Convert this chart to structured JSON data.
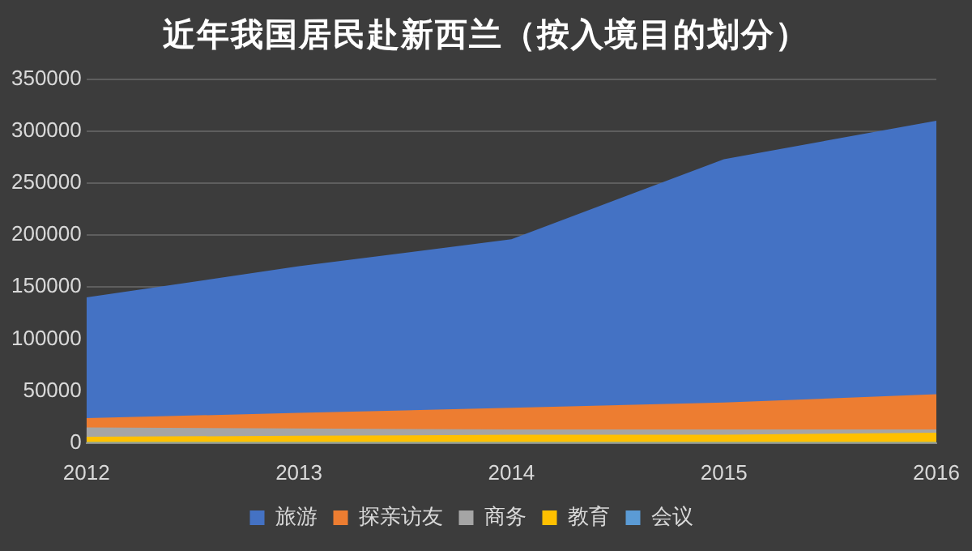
{
  "chart_data": {
    "type": "area",
    "title": "近年我国居民赴新西兰（按入境目的划分）",
    "categories": [
      "2012",
      "2013",
      "2014",
      "2015",
      "2016"
    ],
    "series": [
      {
        "name": "旅游",
        "color": "#4472c4",
        "values": [
          140000,
          170000,
          196000,
          273000,
          310000
        ]
      },
      {
        "name": "探亲访友",
        "color": "#ed7d31",
        "values": [
          24000,
          29000,
          34000,
          39000,
          47000
        ]
      },
      {
        "name": "商务",
        "color": "#a5a5a5",
        "values": [
          15000,
          14000,
          13000,
          13000,
          13000
        ]
      },
      {
        "name": "教育",
        "color": "#ffc000",
        "values": [
          6000,
          7000,
          8000,
          8000,
          10000
        ]
      },
      {
        "name": "会议",
        "color": "#5b9bd5",
        "values": [
          1000,
          1000,
          1000,
          1000,
          1000
        ]
      }
    ],
    "ylim": [
      0,
      350000
    ],
    "yticks": [
      0,
      50000,
      100000,
      150000,
      200000,
      250000,
      300000,
      350000
    ],
    "grid": "y",
    "legend": "bottom"
  }
}
